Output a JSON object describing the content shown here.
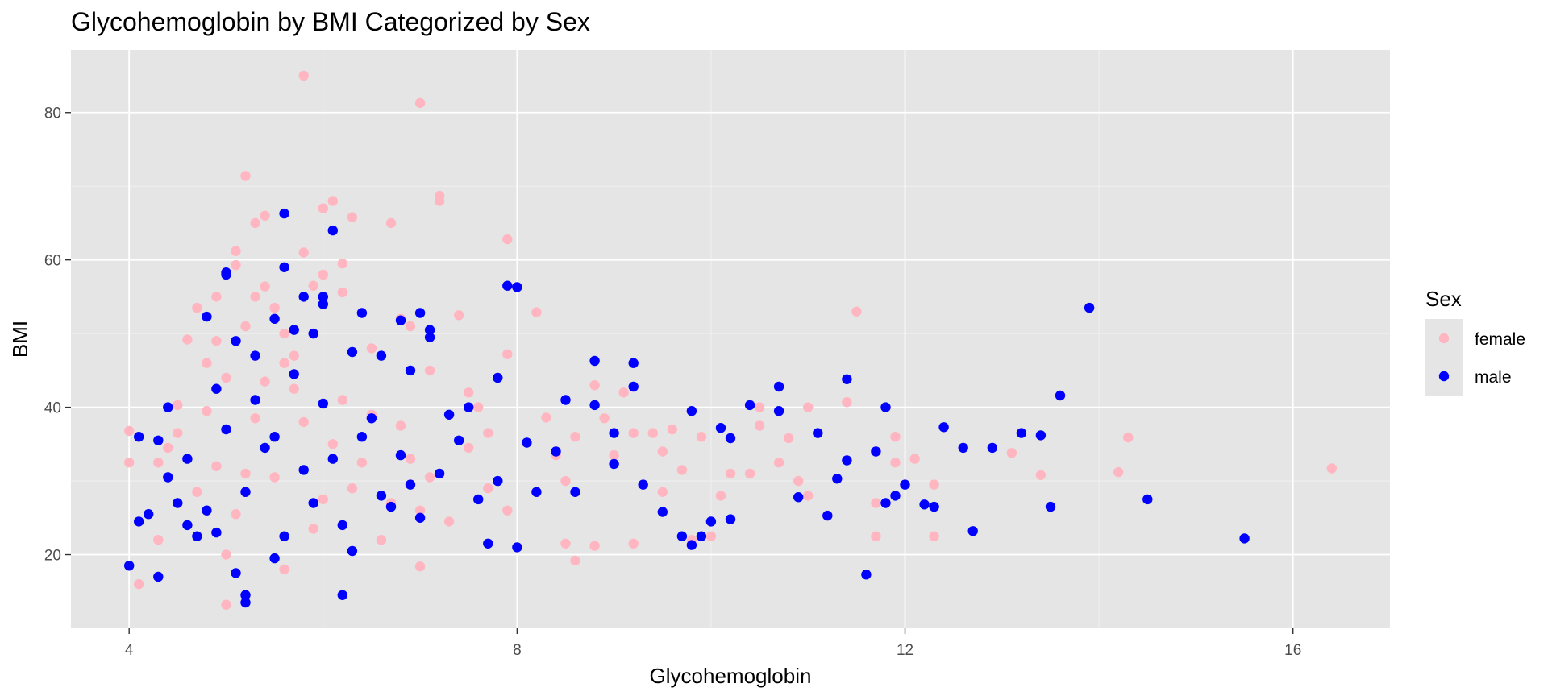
{
  "chart_data": {
    "type": "scatter",
    "title": "Glycohemoglobin by BMI Categorized by Sex",
    "xlabel": "Glycohemoglobin",
    "ylabel": "BMI",
    "xlim": [
      3.4,
      17.0
    ],
    "ylim": [
      10.0,
      88.5
    ],
    "x_ticks": [
      4,
      8,
      12,
      16
    ],
    "y_ticks": [
      20,
      40,
      60,
      80
    ],
    "x_tick_labels": [
      "4",
      "8",
      "12",
      "16"
    ],
    "y_tick_labels": [
      "20",
      "40",
      "60",
      "80"
    ],
    "grid": true,
    "background": "#e5e5e5",
    "legend": {
      "title": "Sex",
      "position": "right",
      "entries": [
        {
          "label": "female",
          "color": "#ffb6c1"
        },
        {
          "label": "male",
          "color": "#0000ff"
        }
      ]
    },
    "series": [
      {
        "name": "female",
        "color": "#ffb6c1",
        "points": [
          [
            4.0,
            36.8
          ],
          [
            4.0,
            32.5
          ],
          [
            4.1,
            16.0
          ],
          [
            4.3,
            22.0
          ],
          [
            4.3,
            32.5
          ],
          [
            4.4,
            34.5
          ],
          [
            4.5,
            40.3
          ],
          [
            4.6,
            49.2
          ],
          [
            4.7,
            53.5
          ],
          [
            4.8,
            46.0
          ],
          [
            4.9,
            49.0
          ],
          [
            4.9,
            55.0
          ],
          [
            5.0,
            44.0
          ],
          [
            5.0,
            13.2
          ],
          [
            5.1,
            61.2
          ],
          [
            5.1,
            59.3
          ],
          [
            5.2,
            71.4
          ],
          [
            5.2,
            51.0
          ],
          [
            5.3,
            65.0
          ],
          [
            5.3,
            55.0
          ],
          [
            5.4,
            66.0
          ],
          [
            5.4,
            56.4
          ],
          [
            5.5,
            53.5
          ],
          [
            5.6,
            50.0
          ],
          [
            5.7,
            47.0
          ],
          [
            5.8,
            85.0
          ],
          [
            5.8,
            61.0
          ],
          [
            5.9,
            56.5
          ],
          [
            6.0,
            67.0
          ],
          [
            6.0,
            58.0
          ],
          [
            6.1,
            68.0
          ],
          [
            6.2,
            59.5
          ],
          [
            6.2,
            55.6
          ],
          [
            6.3,
            65.8
          ],
          [
            6.5,
            48.0
          ],
          [
            6.7,
            65.0
          ],
          [
            6.8,
            52.0
          ],
          [
            6.9,
            51.0
          ],
          [
            7.0,
            81.3
          ],
          [
            7.0,
            18.4
          ],
          [
            7.1,
            45.0
          ],
          [
            7.2,
            68.7
          ],
          [
            7.2,
            68.0
          ],
          [
            7.4,
            52.5
          ],
          [
            7.5,
            42.0
          ],
          [
            7.6,
            40.0
          ],
          [
            7.7,
            36.5
          ],
          [
            7.9,
            62.8
          ],
          [
            7.9,
            47.2
          ],
          [
            7.9,
            26.0
          ],
          [
            8.2,
            52.9
          ],
          [
            8.3,
            38.6
          ],
          [
            8.4,
            33.5
          ],
          [
            8.5,
            30.0
          ],
          [
            8.5,
            21.5
          ],
          [
            8.6,
            36.0
          ],
          [
            8.6,
            19.2
          ],
          [
            8.8,
            43.0
          ],
          [
            8.8,
            21.2
          ],
          [
            8.9,
            38.5
          ],
          [
            9.0,
            33.5
          ],
          [
            9.1,
            42.0
          ],
          [
            9.2,
            36.5
          ],
          [
            9.2,
            21.5
          ],
          [
            9.4,
            36.5
          ],
          [
            9.5,
            34.0
          ],
          [
            9.5,
            28.5
          ],
          [
            9.6,
            37.0
          ],
          [
            9.7,
            31.5
          ],
          [
            9.8,
            22.0
          ],
          [
            9.9,
            36.0
          ],
          [
            10.0,
            22.5
          ],
          [
            10.1,
            28.0
          ],
          [
            10.2,
            31.0
          ],
          [
            10.4,
            31.0
          ],
          [
            10.5,
            40.0
          ],
          [
            10.5,
            37.5
          ],
          [
            10.7,
            32.5
          ],
          [
            10.8,
            35.8
          ],
          [
            10.9,
            30.0
          ],
          [
            11.0,
            40.0
          ],
          [
            11.0,
            28.0
          ],
          [
            11.1,
            36.5
          ],
          [
            11.4,
            40.7
          ],
          [
            11.5,
            53.0
          ],
          [
            11.7,
            22.5
          ],
          [
            11.7,
            27.0
          ],
          [
            11.9,
            36.0
          ],
          [
            11.9,
            32.5
          ],
          [
            12.1,
            33.0
          ],
          [
            12.3,
            29.5
          ],
          [
            12.3,
            22.5
          ],
          [
            13.1,
            33.8
          ],
          [
            13.4,
            30.8
          ],
          [
            14.2,
            31.2
          ],
          [
            14.3,
            35.9
          ],
          [
            16.4,
            31.7
          ],
          [
            4.5,
            36.5
          ],
          [
            4.7,
            28.5
          ],
          [
            4.9,
            32.0
          ],
          [
            5.1,
            25.5
          ],
          [
            5.3,
            38.5
          ],
          [
            5.5,
            30.5
          ],
          [
            5.7,
            42.5
          ],
          [
            5.9,
            23.5
          ],
          [
            6.1,
            35.0
          ],
          [
            6.3,
            29.0
          ],
          [
            6.5,
            39.0
          ],
          [
            6.7,
            27.0
          ],
          [
            6.9,
            33.0
          ],
          [
            7.1,
            30.5
          ],
          [
            7.3,
            24.5
          ],
          [
            7.5,
            34.5
          ],
          [
            7.7,
            29.0
          ],
          [
            5.0,
            20.0
          ],
          [
            5.2,
            31.0
          ],
          [
            5.4,
            43.5
          ],
          [
            5.6,
            18.0
          ],
          [
            5.8,
            38.0
          ],
          [
            6.0,
            27.5
          ],
          [
            6.2,
            41.0
          ],
          [
            6.4,
            32.5
          ],
          [
            6.6,
            22.0
          ],
          [
            6.8,
            37.5
          ],
          [
            7.0,
            26.0
          ],
          [
            4.8,
            39.5
          ],
          [
            5.6,
            46.0
          ]
        ]
      },
      {
        "name": "male",
        "color": "#0000ff",
        "points": [
          [
            4.0,
            18.5
          ],
          [
            4.1,
            36.0
          ],
          [
            4.1,
            24.5
          ],
          [
            4.2,
            25.5
          ],
          [
            4.3,
            17.0
          ],
          [
            4.3,
            35.5
          ],
          [
            4.4,
            40.0
          ],
          [
            4.5,
            27.0
          ],
          [
            4.6,
            24.0
          ],
          [
            4.7,
            22.5
          ],
          [
            4.8,
            52.3
          ],
          [
            4.9,
            42.5
          ],
          [
            5.0,
            58.3
          ],
          [
            5.0,
            58.0
          ],
          [
            5.1,
            49.0
          ],
          [
            5.2,
            14.5
          ],
          [
            5.2,
            13.5
          ],
          [
            5.3,
            47.0
          ],
          [
            5.5,
            52.0
          ],
          [
            5.6,
            66.3
          ],
          [
            5.6,
            59.0
          ],
          [
            5.7,
            50.5
          ],
          [
            5.8,
            55.0
          ],
          [
            5.9,
            50.0
          ],
          [
            6.0,
            55.0
          ],
          [
            6.0,
            54.0
          ],
          [
            6.1,
            64.0
          ],
          [
            6.2,
            14.5
          ],
          [
            6.3,
            47.5
          ],
          [
            6.4,
            52.8
          ],
          [
            6.6,
            47.0
          ],
          [
            6.8,
            51.8
          ],
          [
            6.9,
            45.0
          ],
          [
            7.0,
            52.8
          ],
          [
            7.1,
            50.5
          ],
          [
            7.1,
            49.5
          ],
          [
            7.3,
            39.0
          ],
          [
            7.5,
            40.0
          ],
          [
            7.7,
            21.5
          ],
          [
            7.8,
            44.0
          ],
          [
            7.9,
            56.5
          ],
          [
            8.0,
            56.3
          ],
          [
            8.0,
            21.0
          ],
          [
            8.1,
            35.2
          ],
          [
            8.2,
            28.5
          ],
          [
            8.4,
            34.0
          ],
          [
            8.5,
            41.0
          ],
          [
            8.6,
            28.5
          ],
          [
            8.8,
            46.3
          ],
          [
            8.8,
            40.3
          ],
          [
            9.0,
            36.5
          ],
          [
            9.0,
            32.3
          ],
          [
            9.2,
            46.0
          ],
          [
            9.2,
            42.8
          ],
          [
            9.3,
            29.5
          ],
          [
            9.5,
            25.8
          ],
          [
            9.7,
            22.5
          ],
          [
            9.8,
            21.3
          ],
          [
            9.8,
            39.5
          ],
          [
            9.9,
            22.5
          ],
          [
            10.0,
            24.5
          ],
          [
            10.1,
            37.2
          ],
          [
            10.2,
            35.8
          ],
          [
            10.2,
            24.8
          ],
          [
            10.4,
            40.3
          ],
          [
            10.7,
            42.8
          ],
          [
            10.7,
            39.5
          ],
          [
            10.9,
            27.8
          ],
          [
            11.1,
            36.5
          ],
          [
            11.2,
            25.3
          ],
          [
            11.3,
            30.3
          ],
          [
            11.4,
            43.8
          ],
          [
            11.4,
            32.8
          ],
          [
            11.6,
            17.3
          ],
          [
            11.7,
            34.0
          ],
          [
            11.8,
            40.0
          ],
          [
            11.8,
            27.0
          ],
          [
            11.9,
            28.0
          ],
          [
            12.0,
            29.5
          ],
          [
            12.2,
            26.8
          ],
          [
            12.3,
            26.5
          ],
          [
            12.4,
            37.3
          ],
          [
            12.6,
            34.5
          ],
          [
            12.7,
            23.2
          ],
          [
            12.9,
            34.5
          ],
          [
            13.2,
            36.5
          ],
          [
            13.4,
            36.2
          ],
          [
            13.5,
            26.5
          ],
          [
            13.6,
            41.6
          ],
          [
            13.9,
            53.5
          ],
          [
            14.5,
            27.5
          ],
          [
            15.5,
            22.2
          ],
          [
            4.4,
            30.5
          ],
          [
            4.6,
            33.0
          ],
          [
            4.8,
            26.0
          ],
          [
            5.0,
            37.0
          ],
          [
            5.2,
            28.5
          ],
          [
            5.4,
            34.5
          ],
          [
            5.6,
            22.5
          ],
          [
            5.8,
            31.5
          ],
          [
            6.0,
            40.5
          ],
          [
            6.2,
            24.0
          ],
          [
            6.4,
            36.0
          ],
          [
            6.6,
            28.0
          ],
          [
            6.8,
            33.5
          ],
          [
            7.0,
            25.0
          ],
          [
            7.2,
            31.0
          ],
          [
            7.4,
            35.5
          ],
          [
            7.6,
            27.5
          ],
          [
            7.8,
            30.0
          ],
          [
            5.1,
            17.5
          ],
          [
            5.3,
            41.0
          ],
          [
            5.5,
            19.5
          ],
          [
            5.7,
            44.5
          ],
          [
            5.9,
            27.0
          ],
          [
            6.1,
            33.0
          ],
          [
            6.3,
            20.5
          ],
          [
            6.5,
            38.5
          ],
          [
            6.7,
            26.5
          ],
          [
            6.9,
            29.5
          ],
          [
            4.9,
            23.0
          ],
          [
            5.5,
            36.0
          ]
        ]
      }
    ]
  }
}
